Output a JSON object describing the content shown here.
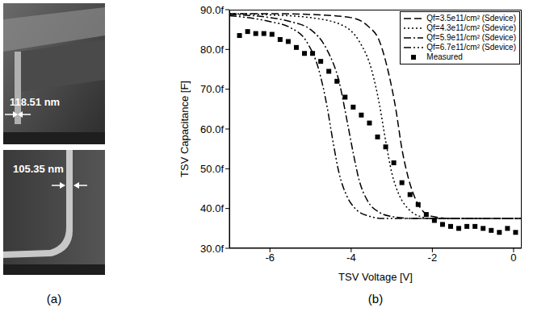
{
  "panel_labels": [
    "(a)",
    "(b)"
  ],
  "panel_a": {
    "images": [
      {
        "measurement": "118.51 nm"
      },
      {
        "measurement": "105.35 nm"
      }
    ]
  },
  "chart_data": {
    "type": "line",
    "x_label": "TSV Voltage [V]",
    "y_label": "TSV Capacitance [F]",
    "xlim": [
      -7,
      0.2
    ],
    "xticks": [
      -6,
      -4,
      -2,
      0
    ],
    "ylim": [
      30,
      90
    ],
    "yticks": [
      {
        "value": 30,
        "label": "30.0f"
      },
      {
        "value": 40,
        "label": "40.0f"
      },
      {
        "value": 50,
        "label": "50.0f"
      },
      {
        "value": 60,
        "label": "60.0f"
      },
      {
        "value": 70,
        "label": "70.0f"
      },
      {
        "value": 80,
        "label": "80.0f"
      },
      {
        "value": 90,
        "label": "90.0f"
      }
    ],
    "grid": false,
    "legend": "top-right",
    "series": [
      {
        "name": "Qf=3.5e11/cm² (Sdevice)",
        "type": "line",
        "color": "#000000",
        "line_style": "dashed",
        "x": [
          -7,
          -6,
          -5,
          -4,
          -3.6,
          -3.3,
          -3.1,
          -2.9,
          -2.75,
          -2.6,
          -2.4,
          -2.2,
          -2.0,
          -1.5,
          0.2
        ],
        "values": [
          89,
          89,
          88.8,
          88,
          86,
          82,
          75,
          65,
          55,
          48,
          42,
          39,
          38,
          37.5,
          37.5
        ]
      },
      {
        "name": "Qf=4.3e11/cm² (Sdevice)",
        "type": "line",
        "color": "#000000",
        "line_style": "dotted",
        "x": [
          -7,
          -6,
          -5,
          -4.2,
          -3.8,
          -3.5,
          -3.3,
          -3.15,
          -3.0,
          -2.8,
          -2.6,
          -2.3,
          -2.0,
          0.2
        ],
        "values": [
          89,
          88.7,
          88,
          86,
          82,
          75,
          66,
          57,
          49,
          43,
          40,
          38,
          37.5,
          37.5
        ]
      },
      {
        "name": "Qf=5.9e11/cm² (Sdevice)",
        "type": "line",
        "color": "#000000",
        "line_style": "dash-dot",
        "x": [
          -7,
          -6,
          -5.5,
          -5,
          -4.6,
          -4.3,
          -4.1,
          -3.95,
          -3.8,
          -3.6,
          -3.3,
          -3.0,
          -2.5,
          0.2
        ],
        "values": [
          88.8,
          88,
          87,
          85,
          80,
          72,
          62,
          54,
          47,
          42,
          39,
          38,
          37.5,
          37.5
        ]
      },
      {
        "name": "Qf=6.7e11/cm² (Sdevice)",
        "type": "line",
        "color": "#000000",
        "line_style": "dash-dot-dot",
        "x": [
          -7,
          -6,
          -5.5,
          -5.1,
          -4.8,
          -4.6,
          -4.45,
          -4.3,
          -4.1,
          -3.9,
          -3.6,
          -3.2,
          0.2
        ],
        "values": [
          88.5,
          87,
          85.5,
          82,
          75,
          66,
          57,
          49,
          43,
          40,
          38.2,
          37.5,
          37.5
        ]
      },
      {
        "name": "Measured",
        "type": "scatter",
        "color": "#000000",
        "marker": "square",
        "x": [
          -6.75,
          -6.55,
          -6.35,
          -6.15,
          -5.95,
          -5.75,
          -5.55,
          -5.35,
          -5.15,
          -4.95,
          -4.75,
          -4.55,
          -4.35,
          -4.15,
          -3.95,
          -3.75,
          -3.55,
          -3.35,
          -3.15,
          -2.95,
          -2.75,
          -2.55,
          -2.35,
          -2.15,
          -1.95,
          -1.75,
          -1.55,
          -1.35,
          -1.15,
          -0.95,
          -0.75,
          -0.55,
          -0.35,
          -0.15,
          0.05
        ],
        "values": [
          83.5,
          84.5,
          84,
          84,
          83.8,
          82.5,
          82,
          80.5,
          79,
          79,
          77,
          74.5,
          72,
          68,
          65.5,
          63.5,
          61.5,
          58,
          55.5,
          51.5,
          46.5,
          43.5,
          41,
          38.5,
          37,
          36,
          35.5,
          35,
          35.5,
          35.5,
          35,
          34.5,
          34,
          35,
          34
        ]
      }
    ]
  }
}
